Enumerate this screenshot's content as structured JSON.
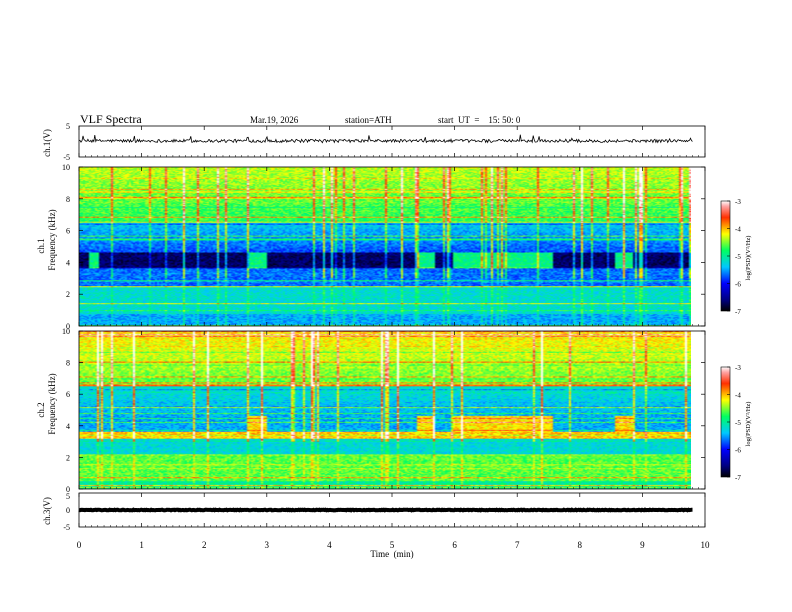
{
  "header": {
    "title": "VLF  Spectra",
    "date": "Mar.19, 2026",
    "station": "station=ATH",
    "start": "start  UT  =    15: 50: 0"
  },
  "chart_data": {
    "type": "heatmap",
    "title": "VLF Spectra",
    "xlabel": "Time  (min)",
    "xlim": [
      0,
      10
    ],
    "x_ticks": [
      "0",
      "1",
      "2",
      "3",
      "4",
      "5",
      "6",
      "7",
      "8",
      "9",
      "10"
    ],
    "panels": [
      {
        "id": "ch1-waveform",
        "type": "line",
        "ylabel": "ch.1(V)",
        "ylim": [
          -5,
          5
        ],
        "y_ticks": [
          "5",
          "-5"
        ],
        "baseline": 0.2,
        "noise_amplitude": 0.5,
        "data_end_min": 9.8
      },
      {
        "id": "ch1-spectrogram",
        "type": "heatmap",
        "channel_label": "ch.1",
        "ylabel": "Frequency  (kHz)",
        "ylim": [
          0,
          10
        ],
        "y_ticks": [
          "0",
          "2",
          "4",
          "6",
          "8",
          "10"
        ],
        "colorbar": {
          "label": "log(PSD)(V²/Hz)",
          "range": [
            -7,
            -3
          ],
          "ticks": [
            "-3",
            "-4",
            "-5",
            "-6",
            "-7"
          ]
        },
        "transmitter_band_khz": [
          3.6,
          4.6
        ],
        "transmitter_off_intervals_min": [
          [
            0.15,
            0.3
          ],
          [
            2.7,
            3.0
          ],
          [
            5.4,
            5.7
          ],
          [
            6.0,
            7.6
          ],
          [
            8.6,
            8.9
          ]
        ],
        "data_end_min": 9.8
      },
      {
        "id": "ch2-spectrogram",
        "type": "heatmap",
        "channel_label": "ch.2",
        "ylabel": "Frequency  (kHz)",
        "ylim": [
          0,
          10
        ],
        "y_ticks": [
          "0",
          "2",
          "4",
          "6",
          "8",
          "10"
        ],
        "colorbar": {
          "label": "log(PSD)(V²/Hz)",
          "range": [
            -7,
            -3
          ],
          "ticks": [
            "-3",
            "-4",
            "-5",
            "-6",
            "-7"
          ]
        },
        "transmitter_band_khz": [
          3.6,
          4.6
        ],
        "transmitter_off_intervals_min": [
          [
            2.7,
            3.0
          ],
          [
            5.4,
            5.7
          ],
          [
            6.0,
            7.6
          ],
          [
            8.6,
            8.9
          ]
        ],
        "data_end_min": 9.8
      },
      {
        "id": "ch3-waveform",
        "type": "line",
        "ylabel": "ch.3(V)",
        "ylim": [
          -5,
          5
        ],
        "y_ticks": [
          "5",
          "0",
          "-5"
        ],
        "baseline": 0.0,
        "noise_amplitude": 0.1,
        "data_end_min": 9.8
      }
    ]
  }
}
